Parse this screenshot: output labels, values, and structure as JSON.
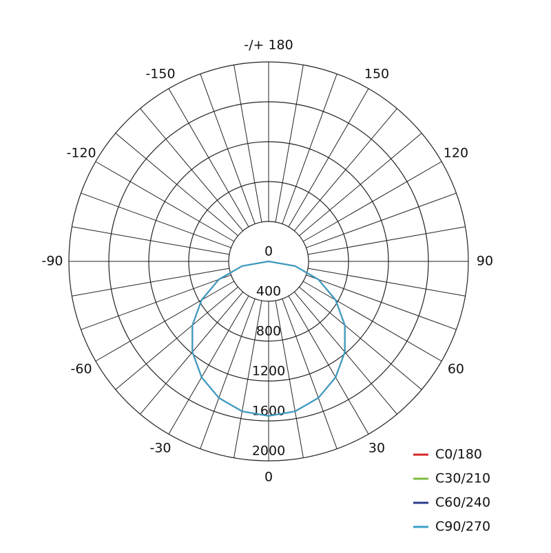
{
  "chart_data": {
    "type": "polar",
    "x": [
      -90,
      -80,
      -70,
      -60,
      -50,
      -40,
      -30,
      -20,
      -10,
      0,
      10,
      20,
      30,
      40,
      50,
      60,
      70,
      80,
      90
    ],
    "series": [
      {
        "name": "C0/180",
        "color": "#d62728",
        "values": [
          0,
          269,
          530,
          775,
          996,
          1187,
          1342,
          1457,
          1527,
          1550,
          1527,
          1457,
          1342,
          1187,
          996,
          775,
          530,
          269,
          0
        ]
      },
      {
        "name": "C30/210",
        "color": "#7dbb42",
        "values": [
          0,
          269,
          530,
          775,
          996,
          1187,
          1342,
          1457,
          1527,
          1550,
          1527,
          1457,
          1342,
          1187,
          996,
          775,
          530,
          269,
          0
        ]
      },
      {
        "name": "C60/240",
        "color": "#2b3a8f",
        "values": [
          0,
          269,
          530,
          775,
          996,
          1187,
          1342,
          1457,
          1527,
          1550,
          1527,
          1457,
          1342,
          1187,
          996,
          775,
          530,
          269,
          0
        ]
      },
      {
        "name": "C90/270",
        "color": "#3aa0c8",
        "values": [
          0,
          269,
          530,
          775,
          996,
          1187,
          1342,
          1457,
          1527,
          1550,
          1527,
          1457,
          1342,
          1187,
          996,
          775,
          530,
          269,
          0
        ]
      }
    ],
    "rlim": [
      0,
      2000
    ],
    "rticks": [
      0,
      400,
      800,
      1200,
      1600,
      2000
    ],
    "xticks": [
      -150,
      -120,
      -90,
      -60,
      -30,
      0,
      30,
      60,
      90,
      120,
      150,
      {
        "value": 180,
        "label": "-/+ 180"
      }
    ],
    "grid": true,
    "legend": "lower right"
  }
}
